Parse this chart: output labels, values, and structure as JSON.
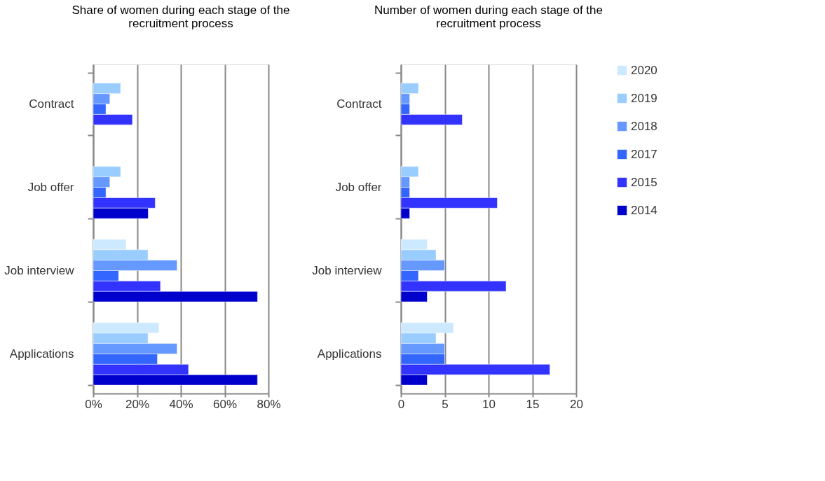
{
  "chart_data": [
    {
      "type": "bar",
      "orientation": "horizontal",
      "title": "Share of women during each stage of the recruitment process",
      "categories": [
        "Contract",
        "Job offer",
        "Job interview",
        "Applications"
      ],
      "series": [
        {
          "name": "2020",
          "color": "#cce9ff",
          "values": [
            null,
            null,
            15,
            30
          ]
        },
        {
          "name": "2019",
          "color": "#99ccff",
          "values": [
            12.5,
            12.5,
            25,
            25
          ]
        },
        {
          "name": "2018",
          "color": "#6699ff",
          "values": [
            7.6,
            7.6,
            38.3,
            38.3
          ]
        },
        {
          "name": "2017",
          "color": "#3366ff",
          "values": [
            5.8,
            5.8,
            11.6,
            29.3
          ]
        },
        {
          "name": "2015",
          "color": "#3333ff",
          "values": [
            17.9,
            28.3,
            30.7,
            43.5
          ]
        },
        {
          "name": "2014",
          "color": "#0000cc",
          "values": [
            null,
            25.1,
            75,
            75
          ]
        }
      ],
      "xlim": [
        0,
        80
      ],
      "xticks": [
        {
          "value": 0,
          "label": "0%"
        },
        {
          "value": 20,
          "label": "20%"
        },
        {
          "value": 40,
          "label": "40%"
        },
        {
          "value": 60,
          "label": "60%"
        },
        {
          "value": 80,
          "label": "80%"
        }
      ],
      "grid": "x",
      "legend": "right"
    },
    {
      "type": "bar",
      "orientation": "horizontal",
      "title": "Number of women during each stage of the recruitment process",
      "categories": [
        "Contract",
        "Job offer",
        "Job interview",
        "Applications"
      ],
      "series": [
        {
          "name": "2020",
          "color": "#cce9ff",
          "values": [
            null,
            null,
            3,
            6
          ]
        },
        {
          "name": "2019",
          "color": "#99ccff",
          "values": [
            2,
            2,
            4,
            4
          ]
        },
        {
          "name": "2018",
          "color": "#6699ff",
          "values": [
            1,
            1,
            5,
            5
          ]
        },
        {
          "name": "2017",
          "color": "#3366ff",
          "values": [
            1,
            1,
            2,
            5
          ]
        },
        {
          "name": "2015",
          "color": "#3333ff",
          "values": [
            7,
            11,
            12,
            17
          ]
        },
        {
          "name": "2014",
          "color": "#0000cc",
          "values": [
            null,
            1,
            3,
            3
          ]
        }
      ],
      "xlim": [
        0,
        20
      ],
      "xticks": [
        0,
        5,
        10,
        15,
        20
      ],
      "grid": "x",
      "legend": "right"
    }
  ]
}
